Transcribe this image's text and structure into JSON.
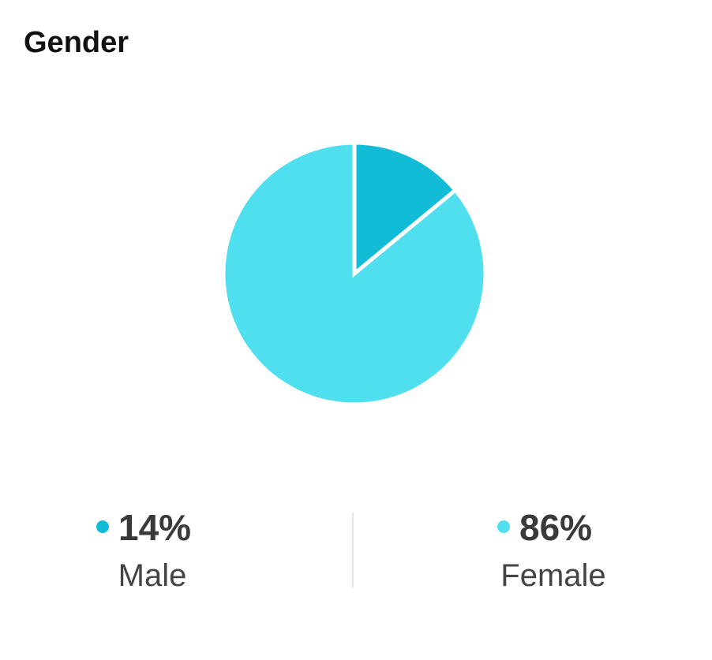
{
  "chart_data": {
    "type": "pie",
    "title": "Gender",
    "categories": [
      "Male",
      "Female"
    ],
    "values": [
      14,
      86
    ],
    "value_labels": [
      "14%",
      "86%"
    ],
    "colors": [
      "#12bcd6",
      "#4fdfef"
    ]
  }
}
